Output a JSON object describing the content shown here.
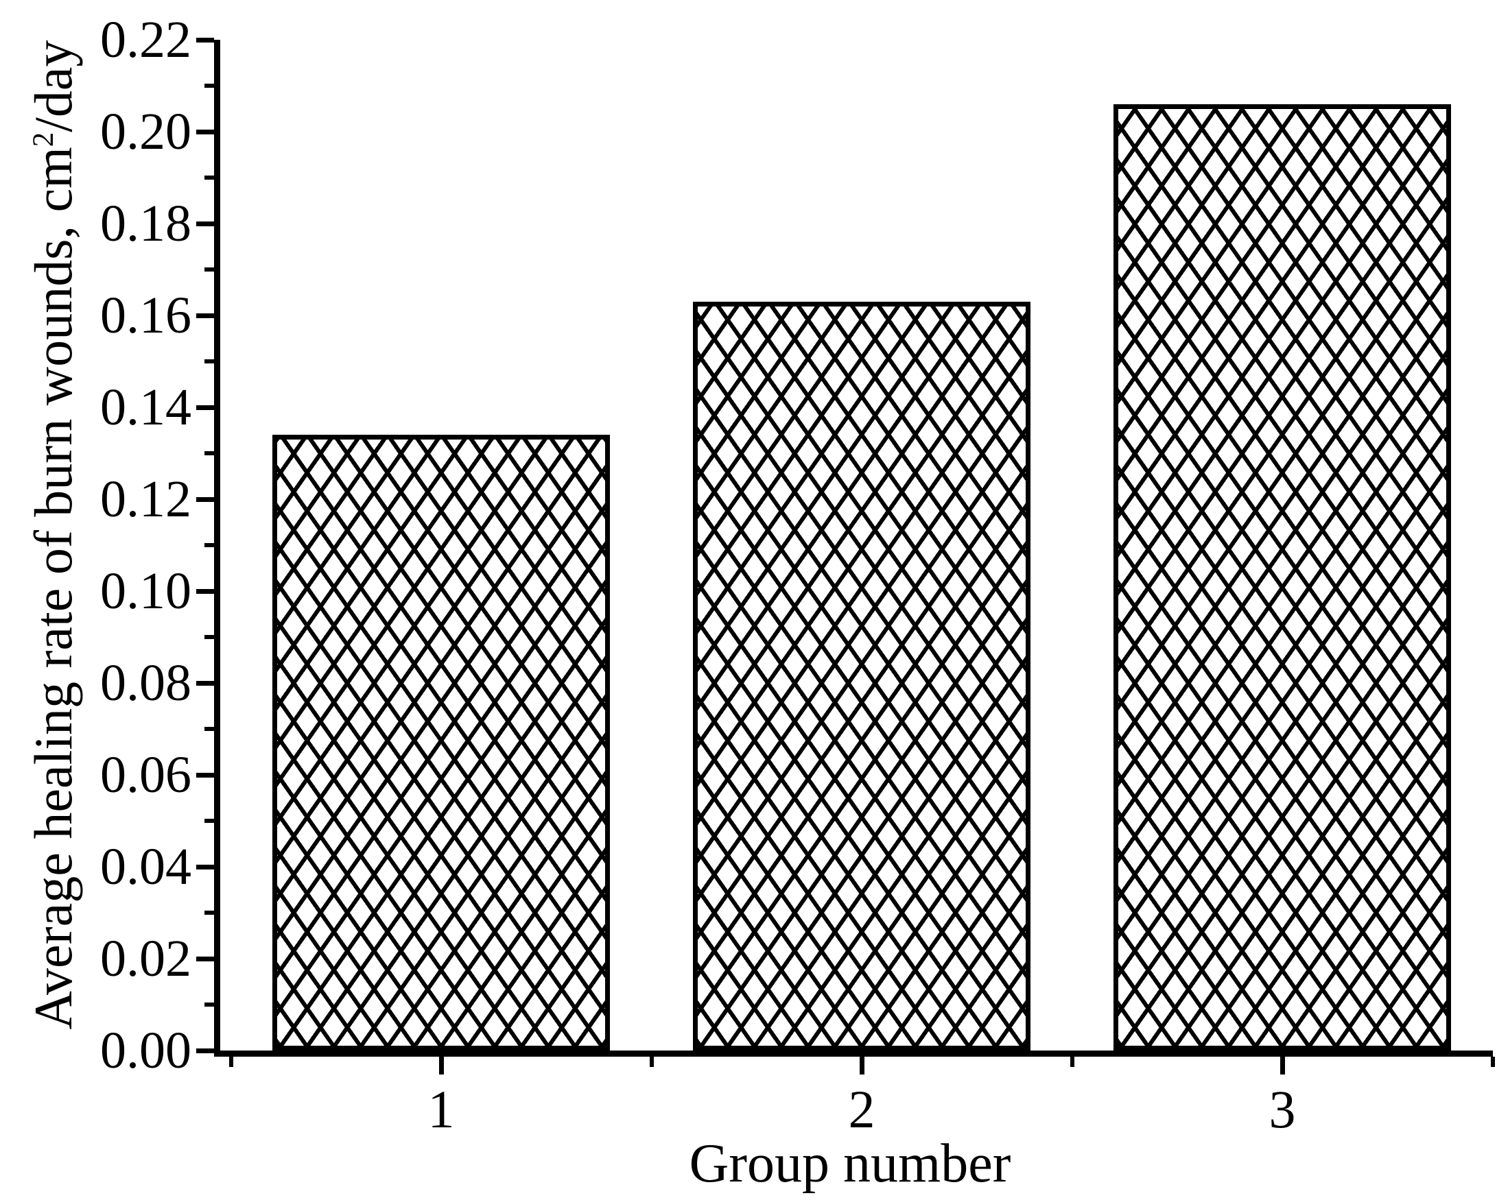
{
  "figure": {
    "background": "#ffffff",
    "ink": "#000000"
  },
  "chart_data": {
    "type": "bar",
    "categories": [
      "1",
      "2",
      "3"
    ],
    "values": [
      0.134,
      0.163,
      0.206
    ],
    "xlabel": "Group number",
    "ylabel": "Average healing rate of burn wounds, cm²/day",
    "ylabel_parts": {
      "prefix": "Average healing rate of burn wounds, cm",
      "superscript": "2",
      "suffix": "/day"
    },
    "ylim": [
      0,
      0.22
    ],
    "ytick_step": 0.02,
    "y_minor_step": 0.01,
    "yticks": [
      "0.00",
      "0.02",
      "0.04",
      "0.06",
      "0.08",
      "0.10",
      "0.12",
      "0.14",
      "0.16",
      "0.18",
      "0.20",
      "0.22"
    ],
    "grid": false,
    "legend": false,
    "bar_style": {
      "fill_pattern": "crosshatch",
      "pattern_color": "#000000",
      "bar_background": "#ffffff",
      "outline_color": "#000000"
    }
  }
}
